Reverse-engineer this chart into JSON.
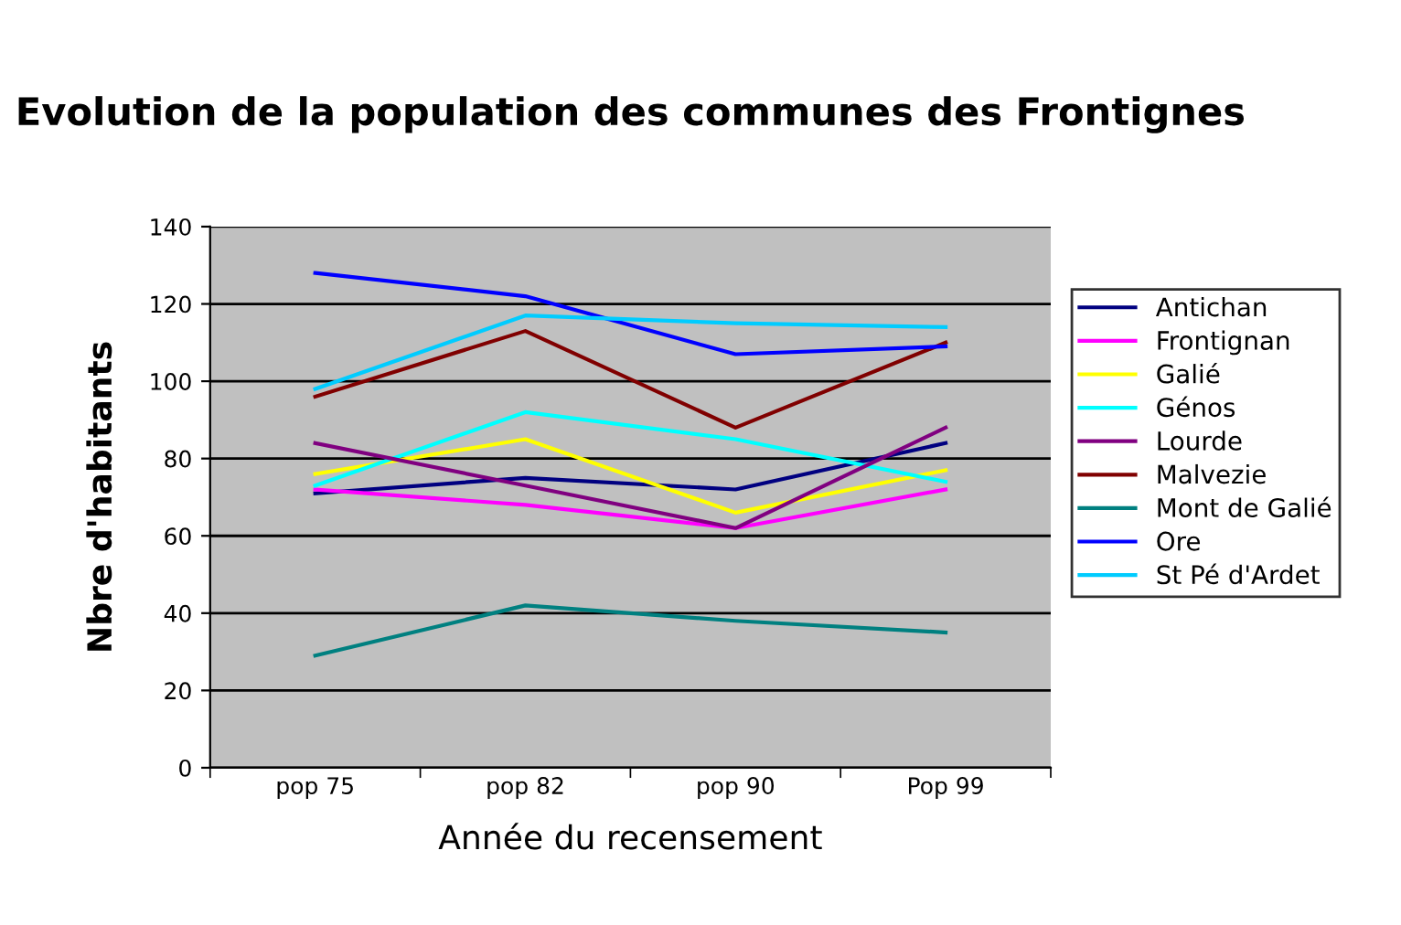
{
  "chart_data": {
    "type": "line",
    "title": "Evolution de la population des communes des Frontignes",
    "xlabel": "Année du recensement",
    "ylabel": "Nbre d'habitants",
    "categories": [
      "pop 75",
      "pop 82",
      "pop 90",
      "Pop 99"
    ],
    "ylim": [
      0,
      140
    ],
    "yticks": [
      0,
      20,
      40,
      60,
      80,
      100,
      120,
      140
    ],
    "grid": "y",
    "legend": "right",
    "marker": "none",
    "series": [
      {
        "name": "Antichan",
        "color": "#000080",
        "values": [
          71,
          75,
          72,
          84
        ]
      },
      {
        "name": "Frontignan",
        "color": "#ff00ff",
        "values": [
          72,
          68,
          62,
          72
        ]
      },
      {
        "name": "Galié",
        "color": "#ffff00",
        "values": [
          76,
          85,
          66,
          77
        ]
      },
      {
        "name": "Génos",
        "color": "#00ffff",
        "values": [
          73,
          92,
          85,
          74
        ]
      },
      {
        "name": "Lourde",
        "color": "#800080",
        "values": [
          84,
          73,
          62,
          88
        ]
      },
      {
        "name": "Malvezie",
        "color": "#800000",
        "values": [
          96,
          113,
          88,
          110
        ]
      },
      {
        "name": "Mont de Galié",
        "color": "#008080",
        "values": [
          29,
          42,
          38,
          35
        ]
      },
      {
        "name": "Ore",
        "color": "#0000ff",
        "values": [
          128,
          122,
          107,
          109
        ]
      },
      {
        "name": "St Pé d'Ardet",
        "color": "#00ccff",
        "values": [
          98,
          117,
          115,
          114
        ]
      }
    ]
  }
}
